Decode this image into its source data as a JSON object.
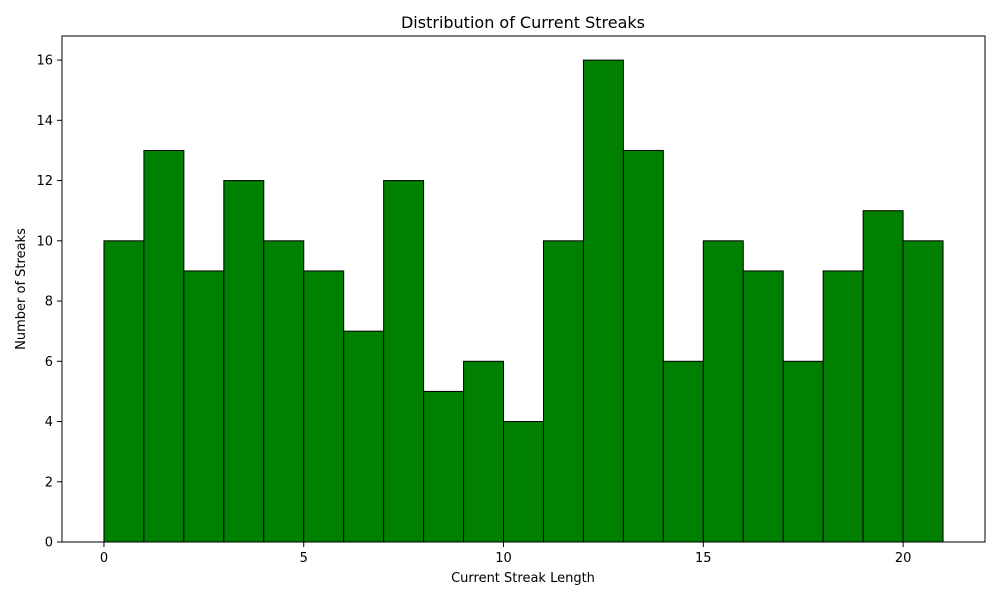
{
  "chart_data": {
    "type": "bar",
    "title": "Distribution of Current Streaks",
    "xlabel": "Current Streak Length",
    "ylabel": "Number of Streaks",
    "bin_edges": [
      0,
      1,
      2,
      3,
      4,
      5,
      6,
      7,
      8,
      9,
      10,
      11,
      12,
      13,
      14,
      15,
      16,
      17,
      18,
      19,
      20,
      21
    ],
    "values": [
      10,
      13,
      9,
      12,
      10,
      9,
      7,
      12,
      5,
      6,
      4,
      10,
      16,
      13,
      6,
      10,
      9,
      6,
      9,
      11,
      10
    ],
    "xlim": [
      -1.05,
      22.05
    ],
    "ylim": [
      0,
      16.8
    ],
    "xticks": [
      0,
      5,
      10,
      15,
      20
    ],
    "xtick_labels": [
      "0",
      "5",
      "10",
      "15",
      "20"
    ],
    "yticks": [
      0,
      2,
      4,
      6,
      8,
      10,
      12,
      14,
      16
    ],
    "ytick_labels": [
      "0",
      "2",
      "4",
      "6",
      "8",
      "10",
      "12",
      "14",
      "16"
    ],
    "bar_color": "#008000",
    "edge_color": "#000000",
    "grid": false,
    "legend": false
  }
}
